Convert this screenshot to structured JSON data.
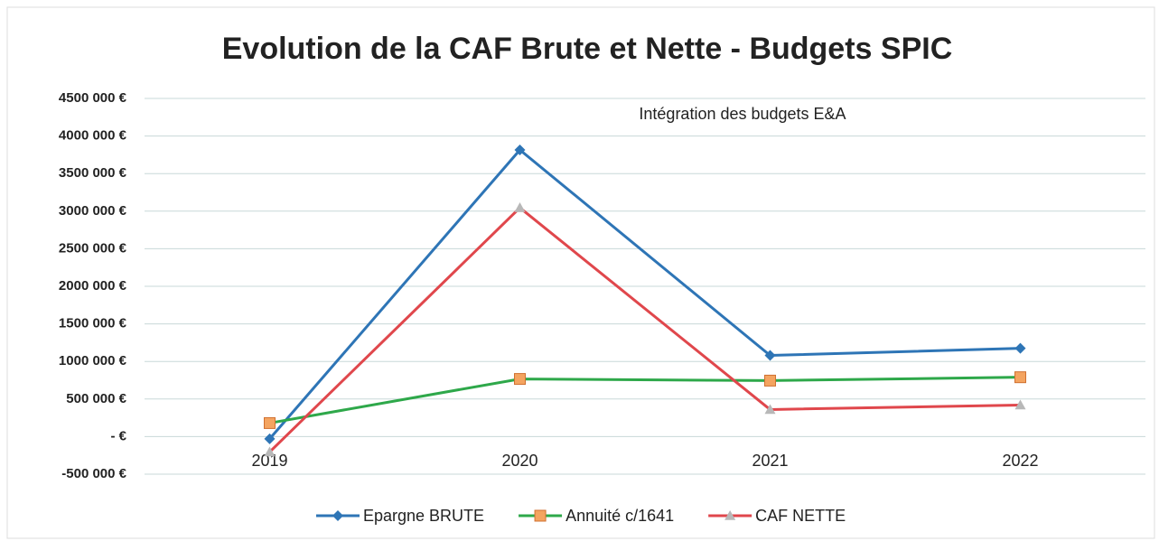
{
  "chart_data": {
    "type": "line",
    "title": "Evolution de la CAF Brute et Nette - Budgets SPIC",
    "annotation": "Intégration des budgets E&A",
    "categories": [
      "2019",
      "2020",
      "2021",
      "2022"
    ],
    "series": [
      {
        "name": "Epargne BRUTE",
        "color": "#2e75b6",
        "marker": "diamond",
        "marker_color": "#2e75b6",
        "values": [
          -30000,
          3815000,
          1080000,
          1175000
        ]
      },
      {
        "name": "Annuité c/1641",
        "color": "#2ea84a",
        "marker": "square",
        "marker_color": "#f4a460",
        "values": [
          180000,
          767000,
          745000,
          790000
        ]
      },
      {
        "name": "CAF NETTE",
        "color": "#e0474c",
        "marker": "triangle",
        "marker_color": "#b8b8b8",
        "values": [
          -205000,
          3045000,
          360000,
          420000
        ]
      }
    ],
    "ylim": [
      -500000,
      4500000
    ],
    "yticks": [
      {
        "value": -500000,
        "label": "-500 000 €"
      },
      {
        "value": 0,
        "label": "-   €"
      },
      {
        "value": 500000,
        "label": "500 000 €"
      },
      {
        "value": 1000000,
        "label": "1000 000 €"
      },
      {
        "value": 1500000,
        "label": "1500 000 €"
      },
      {
        "value": 2000000,
        "label": "2000 000 €"
      },
      {
        "value": 2500000,
        "label": "2500 000 €"
      },
      {
        "value": 3000000,
        "label": "3000 000 €"
      },
      {
        "value": 3500000,
        "label": "3500 000 €"
      },
      {
        "value": 4000000,
        "label": "4000 000 €"
      },
      {
        "value": 4500000,
        "label": "4500 000 €"
      }
    ],
    "grid": true,
    "legend": "bottom"
  }
}
